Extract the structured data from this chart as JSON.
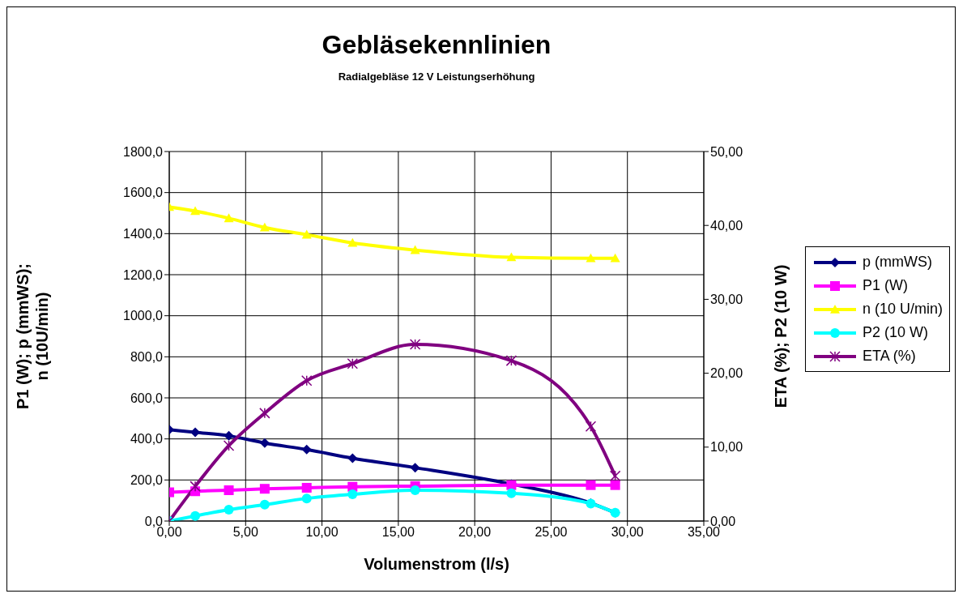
{
  "chart_data": {
    "type": "line",
    "title": "Gebläsekennlinien",
    "subtitle": "Radialgebläse 12 V Leistungserhöhung",
    "xlabel": "Volumenstrom (l/s)",
    "ylabel": "P1 (W); p (mmWS); n (10U/min)",
    "y2label": "ETA (%); P2 (10 W)",
    "x": [
      0,
      1.7,
      3.9,
      6.25,
      9.0,
      12.0,
      16.1,
      22.4,
      27.6,
      29.2
    ],
    "series": [
      {
        "name": "p (mmWS)",
        "color": "#000080",
        "marker": "diamond",
        "values": [
          445,
          432,
          415,
          380,
          348,
          306,
          260,
          180,
          87,
          40
        ]
      },
      {
        "name": "P1 (W)",
        "color": "#ff00ff",
        "marker": "square",
        "values": [
          140,
          145,
          150,
          157,
          162,
          167,
          170,
          175,
          175,
          175
        ]
      },
      {
        "name": "n (10 U/min)",
        "color": "#ffff00",
        "marker": "triangle",
        "values": [
          1530,
          1510,
          1475,
          1430,
          1395,
          1355,
          1320,
          1285,
          1280,
          1280
        ]
      },
      {
        "name": "P2 (10 W)",
        "color": "#00ffff",
        "marker": "circle",
        "values": [
          0,
          25,
          55,
          80,
          110,
          130,
          150,
          135,
          85,
          40
        ]
      },
      {
        "name": "ETA (%)",
        "color": "#800080",
        "marker": "cross",
        "axis": "y2",
        "values": [
          0,
          4.7,
          10.2,
          14.6,
          19.0,
          21.3,
          23.9,
          21.7,
          12.8,
          6.1
        ]
      }
    ],
    "xlim": [
      0,
      35
    ],
    "xticks": [
      {
        "value": 0,
        "label": "0,00"
      },
      {
        "value": 5,
        "label": "5,00"
      },
      {
        "value": 10,
        "label": "10,00"
      },
      {
        "value": 15,
        "label": "15,00"
      },
      {
        "value": 20,
        "label": "20,00"
      },
      {
        "value": 25,
        "label": "25,00"
      },
      {
        "value": 30,
        "label": "30,00"
      },
      {
        "value": 35,
        "label": "35,00"
      }
    ],
    "ylim": [
      0,
      1800
    ],
    "yticks": [
      {
        "value": 0,
        "label": "0,0"
      },
      {
        "value": 200,
        "label": "200,0"
      },
      {
        "value": 400,
        "label": "400,0"
      },
      {
        "value": 600,
        "label": "600,0"
      },
      {
        "value": 800,
        "label": "800,0"
      },
      {
        "value": 1000,
        "label": "1000,0"
      },
      {
        "value": 1200,
        "label": "1200,0"
      },
      {
        "value": 1400,
        "label": "1400,0"
      },
      {
        "value": 1600,
        "label": "1600,0"
      },
      {
        "value": 1800,
        "label": "1800,0"
      }
    ],
    "y2lim": [
      0,
      50
    ],
    "y2ticks": [
      {
        "value": 0,
        "label": "0,00"
      },
      {
        "value": 10,
        "label": "10,00"
      },
      {
        "value": 20,
        "label": "20,00"
      },
      {
        "value": 30,
        "label": "30,00"
      },
      {
        "value": 40,
        "label": "40,00"
      },
      {
        "value": 50,
        "label": "50,00"
      }
    ],
    "grid": true,
    "legend": "right",
    "line_style": "solid"
  }
}
